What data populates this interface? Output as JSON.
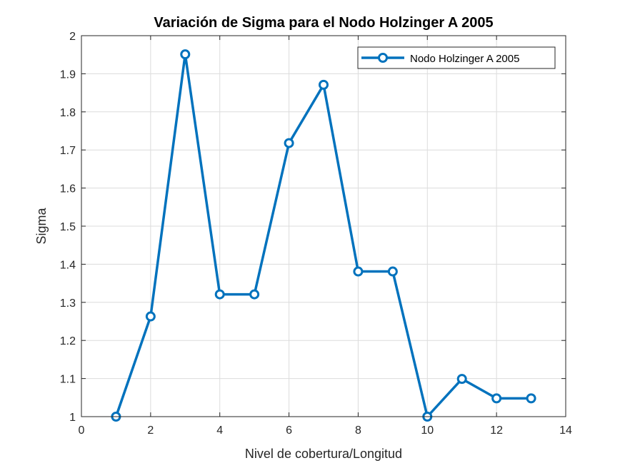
{
  "chart_data": {
    "type": "line",
    "title": "Variación de Sigma para el Nodo Holzinger A 2005",
    "xlabel": "Nivel de cobertura/Longitud",
    "ylabel": "Sigma",
    "xlim": [
      0,
      14
    ],
    "ylim": [
      1,
      2
    ],
    "xticks": [
      0,
      2,
      4,
      6,
      8,
      10,
      12,
      14
    ],
    "yticks": [
      1,
      1.1,
      1.2,
      1.3,
      1.4,
      1.5,
      1.6,
      1.7,
      1.8,
      1.9,
      2
    ],
    "xtick_labels": [
      "0",
      "2",
      "4",
      "6",
      "8",
      "10",
      "12",
      "14"
    ],
    "ytick_labels": [
      "1",
      "1.1",
      "1.2",
      "1.3",
      "1.4",
      "1.5",
      "1.6",
      "1.7",
      "1.8",
      "1.9",
      "2"
    ],
    "grid": true,
    "legend_position": "top-right",
    "series": [
      {
        "name": "Nodo Holzinger A 2005",
        "color": "#0072BD",
        "marker": "circle",
        "x": [
          1,
          2,
          3,
          4,
          5,
          6,
          7,
          8,
          9,
          10,
          11,
          12,
          13
        ],
        "y": [
          1.0,
          1.263,
          1.951,
          1.321,
          1.321,
          1.718,
          1.871,
          1.381,
          1.381,
          1.0,
          1.099,
          1.048,
          1.048
        ]
      }
    ]
  }
}
